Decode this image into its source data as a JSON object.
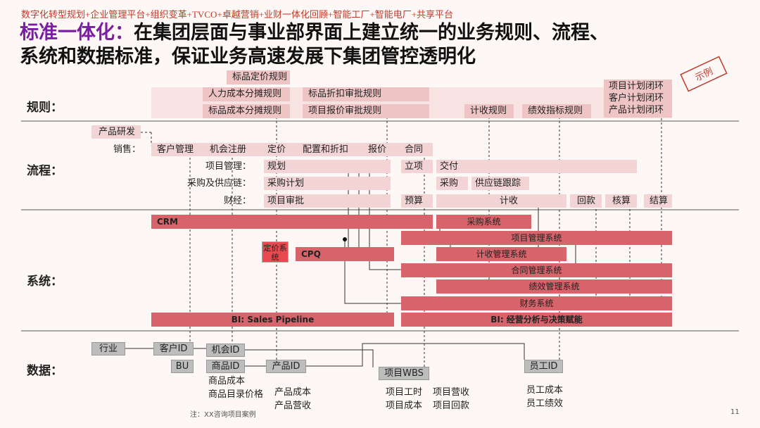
{
  "header": "数字化转型规划+企业管理平台+组织变革+TVCO+卓越营销+业财一体化回顾+智能工厂+智能电厂+共享平台",
  "title": {
    "highlight": "标准一体化：",
    "line1": "在集团层面与事业部界面上建立统一的业务规则、流程、",
    "line2": "系统和数据标准，保证业务高速发展下集团管控透明化"
  },
  "stamp": "示例",
  "sections": [
    "规则：",
    "流程：",
    "系统：",
    "数据："
  ],
  "rules": [
    "标品定价规则",
    "人力成本分摊规则",
    "标品折扣审批规则",
    "标品成本分摊规则",
    "项目报价审批规则",
    "计收规则",
    "绩效指标规则"
  ],
  "loops": [
    "项目计划闭环",
    "客户计划闭环",
    "产品计划闭环"
  ],
  "product_dev": "产品研发",
  "process_rows": [
    {
      "label": "销售：",
      "steps": [
        "客户管理",
        "机会注册",
        "定价",
        "配置和折扣",
        "报价",
        "合同"
      ]
    },
    {
      "label": "项目管理：",
      "steps": [
        "规划",
        "立项",
        "交付"
      ]
    },
    {
      "label": "采购及供应链：",
      "steps": [
        "采购计划",
        "采购",
        "供应链跟踪"
      ]
    },
    {
      "label": "财经：",
      "steps": [
        "项目审批",
        "预算",
        "计收",
        "回款",
        "核算",
        "结算"
      ]
    }
  ],
  "systems": [
    "CRM",
    "采购系统",
    "项目管理系统",
    "定价系统",
    "CPQ",
    "计收管理系统",
    "合同管理系统",
    "绩效管理系统",
    "财务系统",
    "BI: Sales Pipeline",
    "BI: 经营分析与决策赋能"
  ],
  "data_items": [
    "行业",
    "客户ID",
    "机会ID",
    "BU",
    "商品ID",
    "产品ID",
    "项目WBS",
    "员工ID"
  ],
  "data_notes": [
    [
      "商品成本",
      "商品目录价格"
    ],
    [
      "产品成本",
      "产品营收"
    ],
    [
      "项目工时",
      "项目成本"
    ],
    [
      "项目营收",
      "项目回款"
    ],
    [
      "员工成本",
      "员工绩效"
    ]
  ],
  "footnote": "注：XX咨询项目案例",
  "page_number": "11"
}
